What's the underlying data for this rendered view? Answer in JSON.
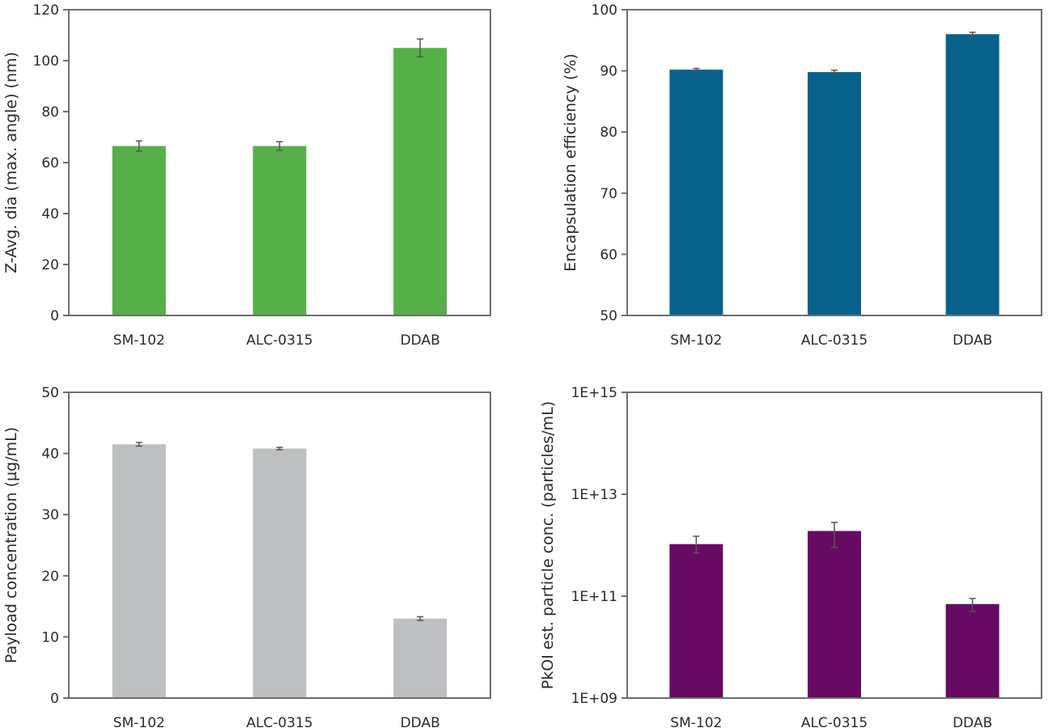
{
  "chart_data": [
    {
      "type": "bar",
      "categories": [
        "SM-102",
        "ALC-0315",
        "DDAB"
      ],
      "values": [
        66.5,
        66.5,
        105
      ],
      "errors": [
        2,
        1.7,
        3.5
      ],
      "ylabel": "Z-Avg. dia (max. angle) (nm)",
      "ylim": [
        0,
        120
      ],
      "yticks": [
        0,
        20,
        40,
        60,
        80,
        100,
        120
      ],
      "ytick_labels": [
        "0",
        "20",
        "40",
        "60",
        "80",
        "100",
        "120"
      ],
      "color": "#55b047",
      "grid": false
    },
    {
      "type": "bar",
      "categories": [
        "SM-102",
        "ALC-0315",
        "DDAB"
      ],
      "values": [
        90.2,
        89.8,
        96
      ],
      "errors": [
        0.2,
        0.3,
        0.3
      ],
      "ylabel": "Encapsulation efficiency (%)",
      "ylim": [
        50,
        100
      ],
      "yticks": [
        50,
        60,
        70,
        80,
        90,
        100
      ],
      "ytick_labels": [
        "50",
        "60",
        "70",
        "80",
        "90",
        "100"
      ],
      "color": "#06628a",
      "grid": false
    },
    {
      "type": "bar",
      "categories": [
        "SM-102",
        "ALC-0315",
        "DDAB"
      ],
      "values": [
        41.5,
        40.8,
        13
      ],
      "errors": [
        0.3,
        0.2,
        0.3
      ],
      "ylabel": "Payload concentration  (µg/mL)",
      "ylim": [
        0,
        50
      ],
      "yticks": [
        0,
        10,
        20,
        30,
        40,
        50
      ],
      "ytick_labels": [
        "0",
        "10",
        "20",
        "30",
        "40",
        "50"
      ],
      "color": "#bdbfc0",
      "grid": false
    },
    {
      "type": "bar",
      "scale": "log",
      "categories": [
        "SM-102",
        "ALC-0315",
        "DDAB"
      ],
      "values": [
        1050000000000.0,
        1900000000000.0,
        70000000000.0
      ],
      "error_low": [
        700000000000.0,
        900000000000.0,
        50000000000.0
      ],
      "error_high": [
        1500000000000.0,
        2800000000000.0,
        90000000000.0
      ],
      "ylabel": "PkOI est. particle conc. (particles/mL)",
      "ylim": [
        1000000000.0,
        1000000000000000.0
      ],
      "yticks": [
        1000000000.0,
        100000000000.0,
        10000000000000.0,
        1000000000000000.0
      ],
      "ytick_labels": [
        "1E+09",
        "1E+11",
        "1E+13",
        "1E+15"
      ],
      "color": "#670a63",
      "grid": false
    }
  ]
}
